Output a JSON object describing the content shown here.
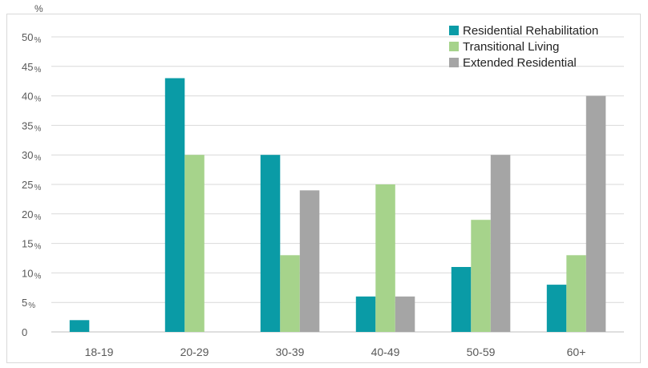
{
  "chart_data": {
    "type": "bar",
    "unit_label": "%",
    "categories": [
      "18-19",
      "20-29",
      "30-39",
      "40-49",
      "50-59",
      "60+"
    ],
    "series": [
      {
        "name": "Residential Rehabilitation",
        "color": "#0a9ba6",
        "values": [
          2,
          43,
          30,
          6,
          11,
          8
        ]
      },
      {
        "name": "Transitional Living",
        "color": "#a6d38b",
        "values": [
          0,
          30,
          13,
          25,
          19,
          13
        ]
      },
      {
        "name": "Extended Residential",
        "color": "#a5a5a5",
        "values": [
          0,
          0,
          24,
          6,
          30,
          40
        ]
      }
    ],
    "ylim": [
      0,
      50
    ],
    "yticks": [
      {
        "num": "0",
        "pct": ""
      },
      {
        "num": "5",
        "pct": "%"
      },
      {
        "num": "10",
        "pct": "%"
      },
      {
        "num": "15",
        "pct": "%"
      },
      {
        "num": "20",
        "pct": "%"
      },
      {
        "num": "25",
        "pct": "%"
      },
      {
        "num": "30",
        "pct": "%"
      },
      {
        "num": "35",
        "pct": "%"
      },
      {
        "num": "40",
        "pct": "%"
      },
      {
        "num": "45",
        "pct": "%"
      },
      {
        "num": "50",
        "pct": "%"
      }
    ],
    "grid": true,
    "legend_position": "top-right"
  }
}
